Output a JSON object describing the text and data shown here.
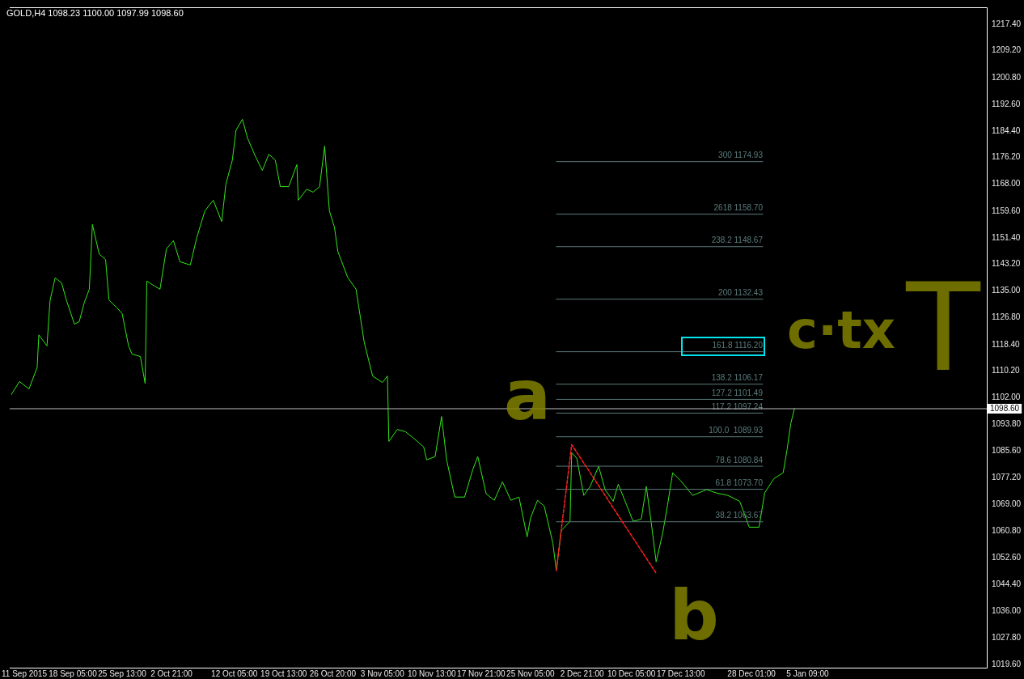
{
  "chart_data": {
    "type": "line",
    "title": "GOLD,H4 1098.23 1100.00 1097.99 1098.60",
    "marker": "none",
    "line_style": "solid",
    "grid": false,
    "legend": false,
    "xlim": [
      "2015-09-08T20:00",
      "2016-02-01"
    ],
    "xticks": [
      {
        "value": "2015-09-11T00:00",
        "label": "11 Sep 2015"
      },
      {
        "value": "2015-09-18T05:00",
        "label": "18 Sep 05:00"
      },
      {
        "value": "2015-09-25T13:00",
        "label": "25 Sep 13:00"
      },
      {
        "value": "2015-10-02T21:00",
        "label": "2 Oct 21:00"
      },
      {
        "value": "2015-10-12T05:00",
        "label": "12 Oct 05:00"
      },
      {
        "value": "2015-10-19T13:00",
        "label": "19 Oct 13:00"
      },
      {
        "value": "2015-10-26T20:00",
        "label": "26 Oct 20:00"
      },
      {
        "value": "2015-11-03T05:00",
        "label": "3 Nov 05:00"
      },
      {
        "value": "2015-11-10T13:00",
        "label": "10 Nov 13:00"
      },
      {
        "value": "2015-11-17T21:00",
        "label": "17 Nov 21:00"
      },
      {
        "value": "2015-11-25T05:00",
        "label": "25 Nov 05:00"
      },
      {
        "value": "2015-12-02T21:00",
        "label": "2 Dec 21:00"
      },
      {
        "value": "2015-12-10T05:00",
        "label": "10 Dec 05:00"
      },
      {
        "value": "2015-12-17T13:00",
        "label": "17 Dec 13:00"
      },
      {
        "value": "2015-12-28T01:00",
        "label": "28 Dec 01:00"
      },
      {
        "value": "2016-01-05T09:00",
        "label": "5 Jan 09:00"
      }
    ],
    "ylim": [
      1018.6,
      1222.6
    ],
    "yticks": [
      {
        "value": 1019.6,
        "label": "1019.60"
      },
      {
        "value": 1027.8,
        "label": "1027.80"
      },
      {
        "value": 1036,
        "label": "1036.00"
      },
      {
        "value": 1044.4,
        "label": "1044.40"
      },
      {
        "value": 1052.6,
        "label": "1052.60"
      },
      {
        "value": 1060.8,
        "label": "1060.80"
      },
      {
        "value": 1069,
        "label": "1069.00"
      },
      {
        "value": 1077.2,
        "label": "1077.20"
      },
      {
        "value": 1085.6,
        "label": "1085.60"
      },
      {
        "value": 1093.8,
        "label": "1093.80"
      },
      {
        "value": 1102,
        "label": "1102.00"
      },
      {
        "value": 1110.2,
        "label": "1110.20"
      },
      {
        "value": 1118.4,
        "label": "1118.40"
      },
      {
        "value": 1126.8,
        "label": "1126.80"
      },
      {
        "value": 1135,
        "label": "1135.00"
      },
      {
        "value": 1143.2,
        "label": "1143.20"
      },
      {
        "value": 1151.4,
        "label": "1151.40"
      },
      {
        "value": 1159.6,
        "label": "1159.60"
      },
      {
        "value": 1168,
        "label": "1168.00"
      },
      {
        "value": 1176.2,
        "label": "1176.20"
      },
      {
        "value": 1184.4,
        "label": "1184.40"
      },
      {
        "value": 1192.6,
        "label": "1192.60"
      },
      {
        "value": 1200.8,
        "label": "1200.80"
      },
      {
        "value": 1209.2,
        "label": "1209.20"
      },
      {
        "value": 1217.4,
        "label": "1217.40"
      }
    ],
    "series": [
      {
        "color": "#33e619",
        "x": [
          "2015-09-09T02:00",
          "2015-09-10T07:00",
          "2015-09-11T17:00",
          "2015-09-12T22:00",
          "2015-09-13T04:00",
          "2015-09-14T09:00",
          "2015-09-14T20:00",
          "2015-09-15T14:00",
          "2015-09-16T13:00",
          "2015-09-17T06:00",
          "2015-09-18T11:00",
          "2015-09-19T04:00",
          "2015-09-19T22:00",
          "2015-09-20T16:00",
          "2015-09-21T03:00",
          "2015-09-22T03:00",
          "2015-09-23T02:00",
          "2015-09-23T14:00",
          "2015-09-24T19:00",
          "2015-09-25T13:00",
          "2015-09-26T12:00",
          "2015-09-27T00:00",
          "2015-09-28T06:00",
          "2015-09-28T23:00",
          "2015-09-29T05:00",
          "2015-09-30T10:00",
          "2015-10-01T04:00",
          "2015-10-02T03:00",
          "2015-10-03T04:00",
          "2015-10-04T03:00",
          "2015-10-05T16:00",
          "2015-10-06T15:00",
          "2015-10-07T20:00",
          "2015-10-09T02:00",
          "2015-10-10T08:00",
          "2015-10-10T23:00",
          "2015-10-11T22:00",
          "2015-10-12T11:00",
          "2015-10-13T10:00",
          "2015-10-14T04:00",
          "2015-10-15T09:00",
          "2015-10-16T09:00",
          "2015-10-17T08:00",
          "2015-10-18T07:00",
          "2015-10-19T01:00",
          "2015-10-20T07:00",
          "2015-10-21T12:00",
          "2015-10-21T17:00",
          "2015-10-22T23:00",
          "2015-10-23T22:00",
          "2015-10-24T21:00",
          "2015-10-25T15:00",
          "2015-10-26T08:00",
          "2015-10-27T02:00",
          "2015-10-27T14:00",
          "2015-10-29T01:00",
          "2015-10-30T07:00",
          "2015-10-31T12:00",
          "2015-11-01T18:00",
          "2015-11-03T05:00",
          "2015-11-03T23:00",
          "2015-11-04T04:00",
          "2015-11-05T10:00",
          "2015-11-06T15:00",
          "2015-11-07T20:00",
          "2015-11-09T08:00",
          "2015-11-09T19:00",
          "2015-11-11T01:00",
          "2015-11-12T00:00",
          "2015-11-12T18:00",
          "2015-11-13T23:00",
          "2015-11-15T10:00",
          "2015-11-16T16:00",
          "2015-11-17T09:00",
          "2015-11-18T15:00",
          "2015-11-19T20:00",
          "2015-11-21T01:00",
          "2015-11-22T07:00",
          "2015-11-23T12:00",
          "2015-11-24T17:00",
          "2015-11-25T05:00",
          "2015-11-26T06:00",
          "2015-11-27T06:00",
          "2015-11-28T13:00",
          "2015-11-29T01:00",
          "2015-11-29T19:00",
          "2015-12-01T02:00",
          "2015-12-01T08:00",
          "2015-12-02T02:00",
          "2015-12-03T03:00",
          "2015-12-04T02:00",
          "2015-12-05T08:00",
          "2015-12-06T07:00",
          "2015-12-07T12:00",
          "2015-12-08T06:00",
          "2015-12-09T11:00",
          "2015-12-10T11:00",
          "2015-12-11T16:00",
          "2015-12-12T10:00",
          "2015-12-13T03:00",
          "2015-12-13T21:00",
          "2015-12-14T20:00",
          "2015-12-15T14:00",
          "2015-12-16T08:00",
          "2015-12-17T13:00",
          "2015-12-19T07:00",
          "2015-12-21T09:00",
          "2015-12-22T19:00",
          "2015-12-24T13:00",
          "2015-12-26T07:00",
          "2015-12-27T17:00",
          "2015-12-29T04:00",
          "2015-12-30T00:00",
          "2015-12-31T09:00",
          "2016-01-01T18:00",
          "2016-01-02T08:00",
          "2016-01-02T21:00",
          "2016-01-03T10:00"
        ],
        "values": [
          1103,
          1107,
          1104.7,
          1111.4,
          1121.4,
          1118,
          1132,
          1139,
          1137.5,
          1132.2,
          1124.7,
          1125.5,
          1131.4,
          1135.5,
          1155.5,
          1146.4,
          1144.7,
          1132.2,
          1129.7,
          1128,
          1118,
          1115.5,
          1114.7,
          1106.4,
          1138,
          1136.4,
          1135.5,
          1148,
          1150.5,
          1144,
          1143,
          1151.4,
          1159.7,
          1163,
          1156.4,
          1168,
          1175.4,
          1184.6,
          1188,
          1182.2,
          1176.4,
          1172.2,
          1177.2,
          1175.4,
          1167.2,
          1167.2,
          1174,
          1163,
          1166.4,
          1165.5,
          1167.2,
          1179.7,
          1159.7,
          1154.7,
          1147.2,
          1139.2,
          1135.5,
          1119.2,
          1108.7,
          1106.7,
          1108.7,
          1088.5,
          1092.2,
          1091.5,
          1089.5,
          1086.8,
          1082.8,
          1083.8,
          1096.2,
          1082.8,
          1071.3,
          1071.3,
          1080,
          1083.8,
          1072.3,
          1070.3,
          1076,
          1070.3,
          1071.3,
          1059,
          1064.8,
          1070.3,
          1068.5,
          1057,
          1048.6,
          1061,
          1063.8,
          1085,
          1083.3,
          1071.8,
          1074.6,
          1080.8,
          1073.6,
          1070,
          1075.3,
          1069,
          1063.8,
          1064.5,
          1074.6,
          1063.8,
          1051.3,
          1060,
          1069,
          1078.8,
          1076.3,
          1071.8,
          1073.6,
          1072.6,
          1071.8,
          1070,
          1062,
          1062,
          1072.6,
          1077,
          1078.8,
          1086,
          1094,
          1098.6
        ]
      },
      {
        "color": "#5b7b7b",
        "name": "300 1174.93",
        "x": [
          "2015-11-29T01:00",
          "2015-12-29T17:00"
        ],
        "values": [
          1174.93,
          1174.93
        ]
      },
      {
        "color": "#5b7b7b",
        "name": "2618 1158.70",
        "x": [
          "2015-11-29T01:00",
          "2015-12-29T17:00"
        ],
        "values": [
          1158.7,
          1158.7
        ]
      },
      {
        "color": "#5b7b7b",
        "name": "238.2 1148.67",
        "x": [
          "2015-11-29T01:00",
          "2015-12-29T17:00"
        ],
        "values": [
          1148.67,
          1148.67
        ]
      },
      {
        "color": "#5b7b7b",
        "name": "200 1132.43",
        "x": [
          "2015-11-29T01:00",
          "2015-12-29T17:00"
        ],
        "values": [
          1132.43,
          1132.43
        ]
      },
      {
        "color": "#5b7b7b",
        "name": "161.8 1116.20",
        "x": [
          "2015-11-29T01:00",
          "2015-12-29T17:00"
        ],
        "values": [
          1116.2,
          1116.2
        ]
      },
      {
        "color": "#5b7b7b",
        "name": "138.2 1106.17",
        "x": [
          "2015-11-29T01:00",
          "2015-12-29T17:00"
        ],
        "values": [
          1106.17,
          1106.17
        ]
      },
      {
        "color": "#5b7b7b",
        "name": "127.2 1101.49",
        "x": [
          "2015-11-29T01:00",
          "2015-12-29T17:00"
        ],
        "values": [
          1101.49,
          1101.49
        ]
      },
      {
        "color": "#5b7b7b",
        "name": "117.2 1097.24",
        "x": [
          "2015-11-29T01:00",
          "2015-12-29T17:00"
        ],
        "values": [
          1097.24,
          1097.24
        ]
      },
      {
        "color": "#5b7b7b",
        "name": "100.0  1089.93",
        "x": [
          "2015-11-29T01:00",
          "2015-12-29T17:00"
        ],
        "values": [
          1089.93,
          1089.93
        ]
      },
      {
        "color": "#5b7b7b",
        "name": "78.6 1080.84",
        "x": [
          "2015-11-29T01:00",
          "2015-12-29T17:00"
        ],
        "values": [
          1080.84,
          1080.84
        ]
      },
      {
        "color": "#5b7b7b",
        "name": "61.8 1073.70",
        "x": [
          "2015-11-29T01:00",
          "2015-12-29T17:00"
        ],
        "values": [
          1073.7,
          1073.7
        ]
      },
      {
        "color": "#5b7b7b",
        "name": "38.2 1063.67",
        "x": [
          "2015-11-29T01:00",
          "2015-12-29T17:00"
        ],
        "values": [
          1063.67,
          1063.67
        ]
      },
      {
        "color": "#ff2020",
        "line_style": "dashed",
        "x": [
          "2015-11-29T01:00",
          "2015-12-01T08:00",
          "2015-12-13T21:00"
        ],
        "values": [
          1048.6,
          1087.5,
          1047.8
        ]
      }
    ],
    "ref_lines": [
      {
        "axis": "y",
        "value": 1098.6,
        "label": "1098.60",
        "color": "#c0c0c0"
      }
    ],
    "annotations": [
      "a",
      "b",
      "c·tx",
      "T"
    ]
  }
}
